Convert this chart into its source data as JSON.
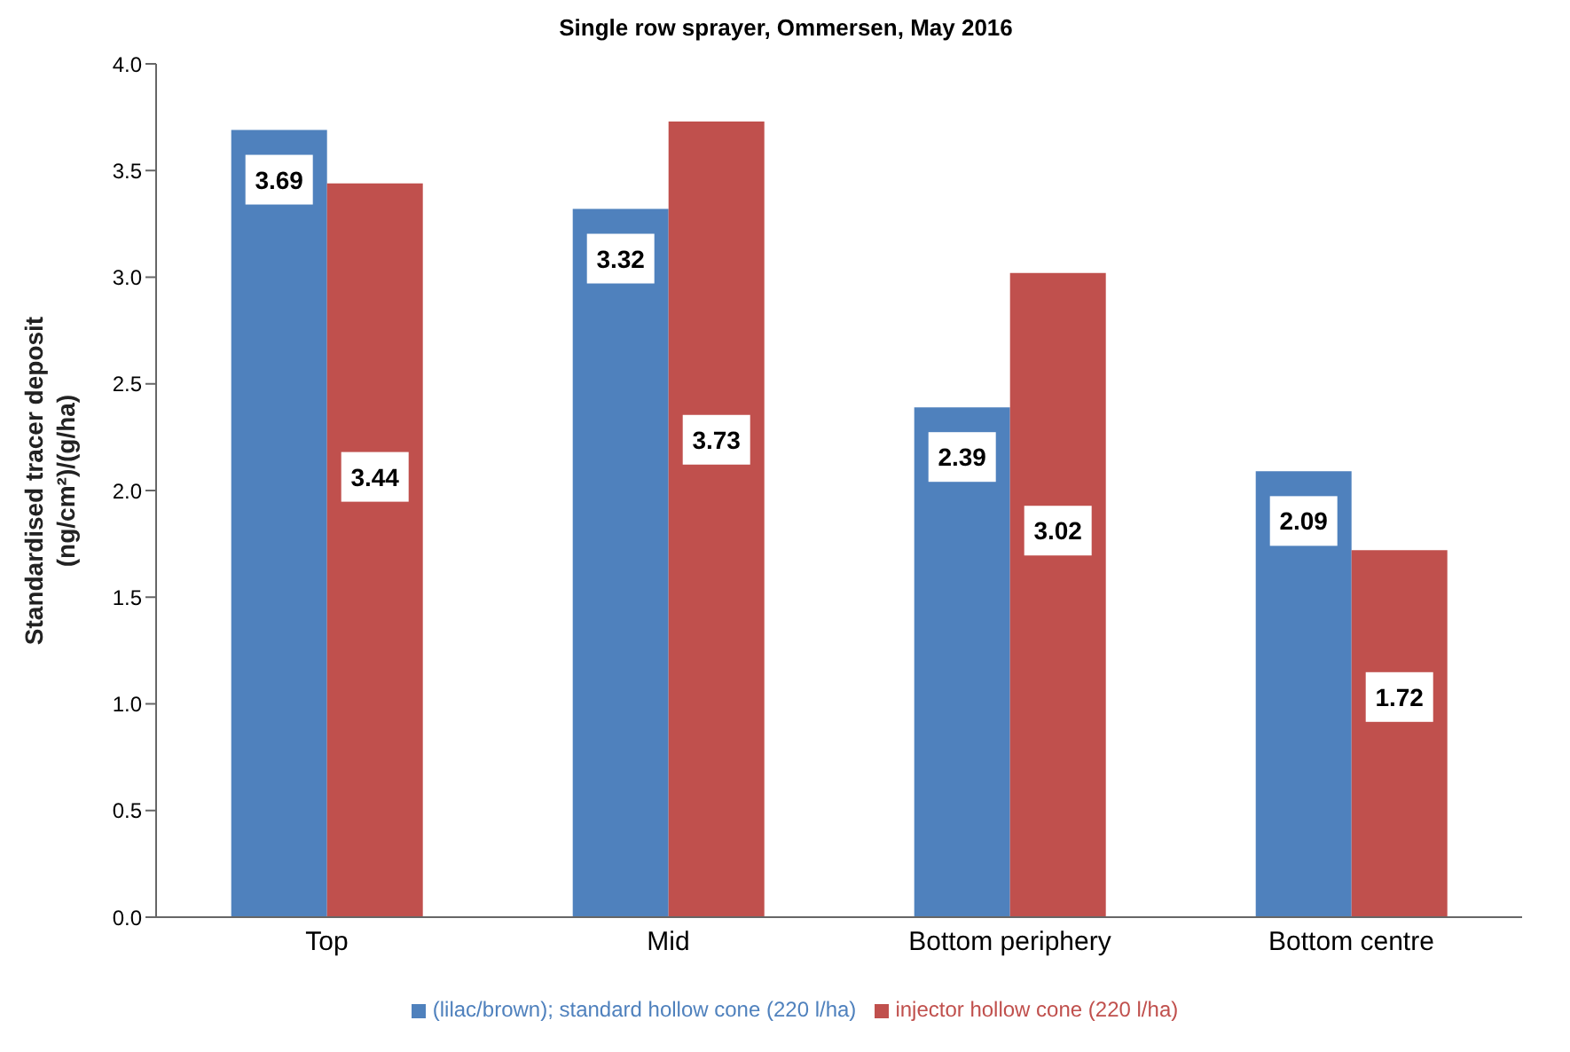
{
  "chart_data": {
    "type": "bar",
    "title": "Single row sprayer, Ommersen, May 2016",
    "ylabel": "Standardised tracer deposit\n(ng/cm²)/(g/ha)",
    "categories": [
      "Top",
      "Mid",
      "Bottom periphery",
      "Bottom centre"
    ],
    "series": [
      {
        "name": "(lilac/brown); standard hollow cone (220 l/ha)",
        "color": "#4f81bd",
        "values": [
          3.69,
          3.32,
          2.39,
          2.09
        ]
      },
      {
        "name": "injector hollow cone (220 l/ha)",
        "color": "#c0504d",
        "values": [
          3.44,
          3.73,
          3.02,
          1.72
        ]
      }
    ],
    "ylim": [
      0,
      4
    ],
    "yticks": [
      {
        "value": 0,
        "label": "0.0"
      },
      {
        "value": 0.5,
        "label": "0.5"
      },
      {
        "value": 1,
        "label": "1.0"
      },
      {
        "value": 1.5,
        "label": "1.5"
      },
      {
        "value": 2,
        "label": "2.0"
      },
      {
        "value": 2.5,
        "label": "2.5"
      },
      {
        "value": 3,
        "label": "3.0"
      },
      {
        "value": 3.5,
        "label": "3.5"
      },
      {
        "value": 4,
        "label": "4.0"
      }
    ],
    "grid": false,
    "legend": "bottom",
    "data_labels": true
  }
}
